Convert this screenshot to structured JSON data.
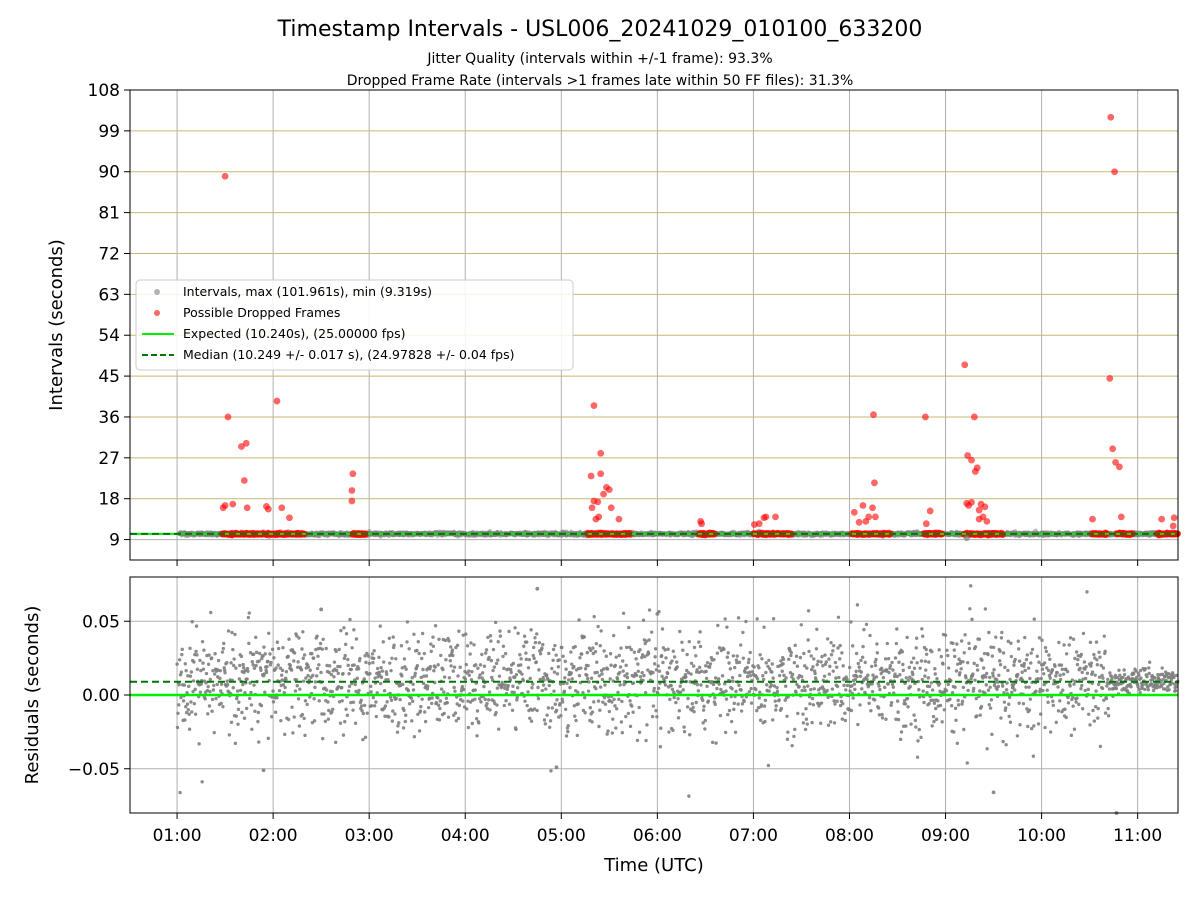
{
  "chart_data": [
    {
      "type": "scatter",
      "title": "Timestamp Intervals - USL006_20241029_010100_633200",
      "subtitle_lines": [
        "Jitter Quality (intervals within +/-1 frame): 93.3%",
        "Dropped Frame Rate (intervals >1 frames late within 50 FF files): 31.3%"
      ],
      "xlabel": "",
      "ylabel": "Intervals (seconds)",
      "x_range_hours": [
        0.51,
        11.42
      ],
      "ylim": [
        4.5,
        108
      ],
      "yticks": [
        9,
        18,
        27,
        36,
        45,
        54,
        63,
        72,
        81,
        90,
        99,
        108
      ],
      "grid": "x and y",
      "expected_interval": 10.24,
      "median_interval": 10.249,
      "legend_position": "center-left",
      "legend": [
        {
          "label": "Intervals, max (101.961s), min (9.319s)",
          "kind": "gray-dot",
          "color": "#808080"
        },
        {
          "label": "Possible Dropped Frames",
          "kind": "red-dot",
          "color": "#ff0000"
        },
        {
          "label": "Expected (10.240s), (25.00000 fps)",
          "kind": "solid-line",
          "color": "#00ee00"
        },
        {
          "label": "Median (10.249 +/- 0.017 s), (24.97828 +/- 0.04 fps)",
          "kind": "dashed-line",
          "color": "#007700"
        }
      ],
      "dropped_frame_segments": [
        [
          1.47,
          2.33
        ],
        [
          2.82,
          2.97
        ],
        [
          5.27,
          5.72
        ],
        [
          6.43,
          6.6
        ],
        [
          7.0,
          7.4
        ],
        [
          8.02,
          8.43
        ],
        [
          8.77,
          8.97
        ],
        [
          9.19,
          9.6
        ],
        [
          10.52,
          10.68
        ],
        [
          10.78,
          10.95
        ],
        [
          11.2,
          11.42
        ]
      ],
      "dropped_frames": [
        [
          1.5,
          89.0
        ],
        [
          1.48,
          16.0
        ],
        [
          1.5,
          16.5
        ],
        [
          1.53,
          36.0
        ],
        [
          1.58,
          16.8
        ],
        [
          1.67,
          29.5
        ],
        [
          1.72,
          30.2
        ],
        [
          1.7,
          22.0
        ],
        [
          1.73,
          16.0
        ],
        [
          1.93,
          16.3
        ],
        [
          1.95,
          15.7
        ],
        [
          2.04,
          39.5
        ],
        [
          2.09,
          16.0
        ],
        [
          2.17,
          13.8
        ],
        [
          2.83,
          23.5
        ],
        [
          2.82,
          19.8
        ],
        [
          2.82,
          17.5
        ],
        [
          5.32,
          16.0
        ],
        [
          5.31,
          23.0
        ],
        [
          5.34,
          38.5
        ],
        [
          5.34,
          17.5
        ],
        [
          5.36,
          13.5
        ],
        [
          5.38,
          17.3
        ],
        [
          5.39,
          14.0
        ],
        [
          5.41,
          28.0
        ],
        [
          5.41,
          23.5
        ],
        [
          5.44,
          19.0
        ],
        [
          5.47,
          20.5
        ],
        [
          5.5,
          20.0
        ],
        [
          5.52,
          16.0
        ],
        [
          5.6,
          13.5
        ],
        [
          6.45,
          13.0
        ],
        [
          6.46,
          12.5
        ],
        [
          7.01,
          12.3
        ],
        [
          7.06,
          12.5
        ],
        [
          7.11,
          13.8
        ],
        [
          7.13,
          14.0
        ],
        [
          7.23,
          14.0
        ],
        [
          8.05,
          15.0
        ],
        [
          8.1,
          12.8
        ],
        [
          8.14,
          16.5
        ],
        [
          8.17,
          13.0
        ],
        [
          8.2,
          14.0
        ],
        [
          8.24,
          16.0
        ],
        [
          8.25,
          36.5
        ],
        [
          8.26,
          21.5
        ],
        [
          8.27,
          14.0
        ],
        [
          8.8,
          12.5
        ],
        [
          8.79,
          36.0
        ],
        [
          8.84,
          15.3
        ],
        [
          9.2,
          47.5
        ],
        [
          9.23,
          27.5
        ],
        [
          9.24,
          16.5
        ],
        [
          9.27,
          26.5
        ],
        [
          9.3,
          36.0
        ],
        [
          9.31,
          24.0
        ],
        [
          9.33,
          24.8
        ],
        [
          9.35,
          13.5
        ],
        [
          9.37,
          16.8
        ],
        [
          9.39,
          14.0
        ],
        [
          9.41,
          16.2
        ],
        [
          9.43,
          13.0
        ],
        [
          10.53,
          13.5
        ],
        [
          10.71,
          44.5
        ],
        [
          10.72,
          102.0
        ],
        [
          10.74,
          29.0
        ],
        [
          10.76,
          90.0
        ],
        [
          10.77,
          26.0
        ],
        [
          10.81,
          25.0
        ],
        [
          10.83,
          14.0
        ],
        [
          11.25,
          13.5
        ],
        [
          11.38,
          13.8
        ],
        [
          11.37,
          12.0
        ],
        [
          9.22,
          17.0
        ],
        [
          9.27,
          17.2
        ],
        [
          9.35,
          15.5
        ]
      ]
    },
    {
      "type": "scatter",
      "xlabel": "Time (UTC)",
      "ylabel": "Residuals (seconds)",
      "ylim": [
        -0.08,
        0.08
      ],
      "yticks": [
        -0.05,
        0.0,
        0.05
      ],
      "ytick_labels": [
        "−0.05",
        "0.00",
        "0.05"
      ],
      "xticks_hours": [
        1,
        2,
        3,
        4,
        5,
        6,
        7,
        8,
        9,
        10,
        11
      ],
      "xtick_labels": [
        "01:00",
        "02:00",
        "03:00",
        "04:00",
        "05:00",
        "06:00",
        "07:00",
        "08:00",
        "09:00",
        "10:00",
        "11:00"
      ],
      "x_range_hours": [
        0.51,
        11.42
      ],
      "expected_residual": 0.0,
      "median_residual": 0.009,
      "residual_spread_sd": 0.017,
      "late_residual_spread_sd": 0.004,
      "late_segment_start_hours": 10.7,
      "outliers": [
        [
          4.75,
          0.072
        ],
        [
          1.9,
          -0.051
        ],
        [
          4.95,
          -0.049
        ],
        [
          9.5,
          -0.066
        ],
        [
          10.78,
          -0.08
        ],
        [
          2.5,
          0.058
        ],
        [
          6.0,
          0.055
        ]
      ],
      "grid": "x and y"
    }
  ],
  "colors": {
    "dropped": "#ff0000",
    "interval_dot": "#808080",
    "expected_line": "#00ee00",
    "median_line": "#007700",
    "grid": "#b0b0b0",
    "y_grid_top": "#c8b870"
  }
}
